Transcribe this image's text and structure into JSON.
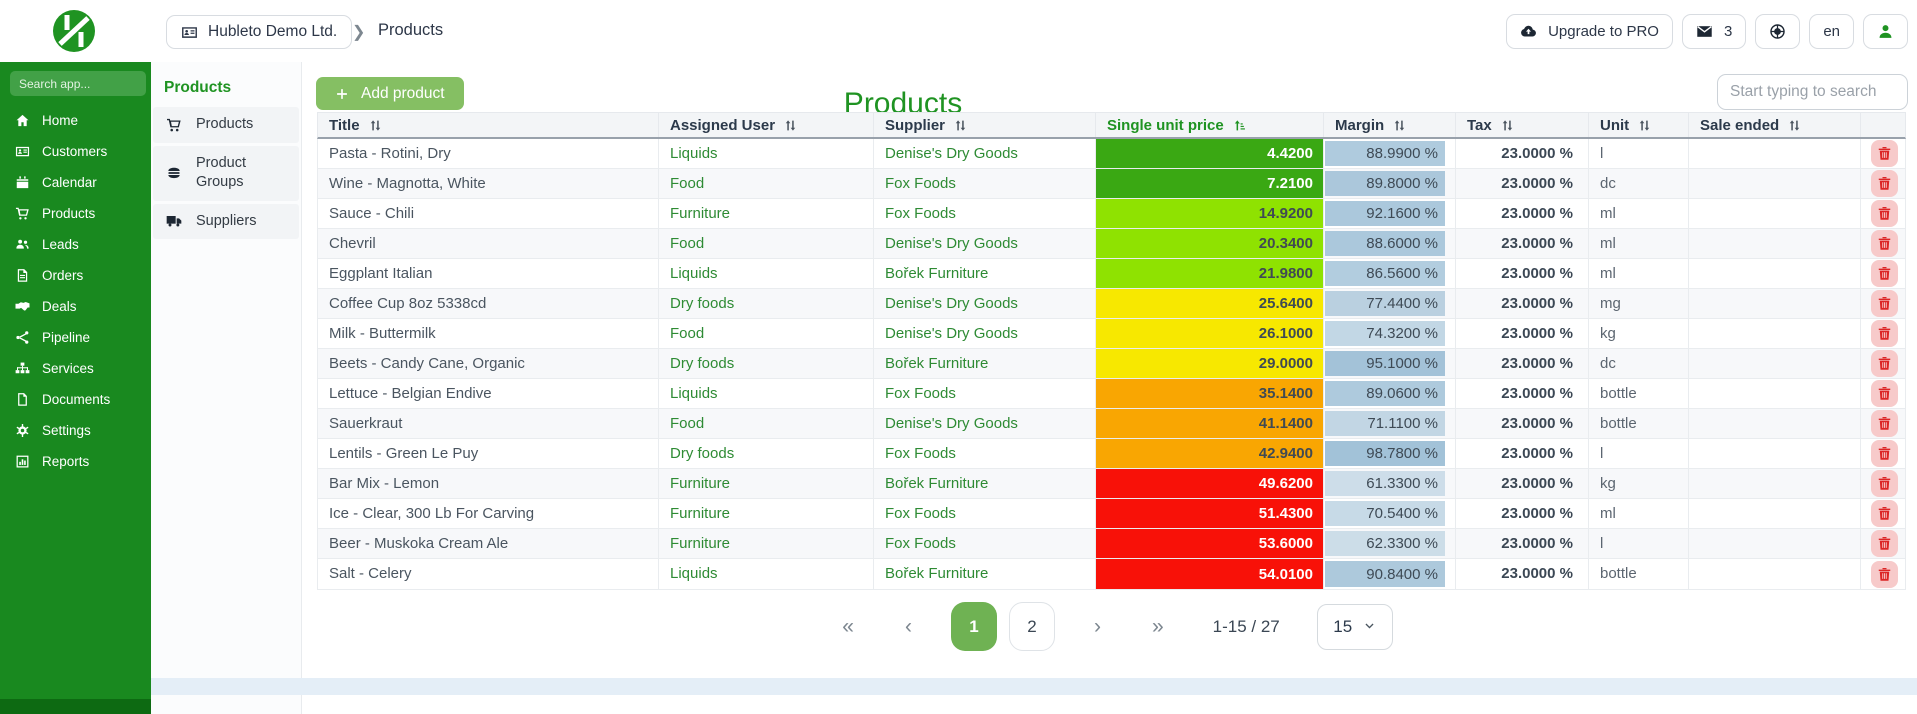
{
  "header": {
    "company": "Hubleto Demo Ltd.",
    "breadcrumb_current": "Products",
    "upgrade_label": "Upgrade to PRO",
    "notifications_count": "3",
    "language": "en"
  },
  "sidebar": {
    "search_placeholder": "Search app...",
    "items": [
      {
        "icon": "home-icon",
        "label": "Home"
      },
      {
        "icon": "id-card-icon",
        "label": "Customers"
      },
      {
        "icon": "calendar-icon",
        "label": "Calendar"
      },
      {
        "icon": "cart-icon",
        "label": "Products"
      },
      {
        "icon": "people-icon",
        "label": "Leads"
      },
      {
        "icon": "file-invoice-icon",
        "label": "Orders"
      },
      {
        "icon": "handshake-icon",
        "label": "Deals"
      },
      {
        "icon": "nodes-icon",
        "label": "Pipeline"
      },
      {
        "icon": "sitemap-icon",
        "label": "Services"
      },
      {
        "icon": "document-icon",
        "label": "Documents"
      },
      {
        "icon": "gear-icon",
        "label": "Settings"
      },
      {
        "icon": "chart-icon",
        "label": "Reports"
      }
    ]
  },
  "submenu": {
    "title": "Products",
    "items": [
      {
        "icon": "cart-icon",
        "label": "Products"
      },
      {
        "icon": "burger-icon",
        "label": "Product Groups"
      },
      {
        "icon": "truck-icon",
        "label": "Suppliers"
      }
    ]
  },
  "main": {
    "add_button_label": "Add product",
    "page_title": "Products",
    "search_placeholder": "Start typing to search"
  },
  "table": {
    "columns": [
      {
        "label": "Title"
      },
      {
        "label": "Assigned User"
      },
      {
        "label": "Supplier"
      },
      {
        "label": "Single unit price",
        "sorted": "asc"
      },
      {
        "label": "Margin"
      },
      {
        "label": "Tax"
      },
      {
        "label": "Unit"
      },
      {
        "label": "Sale ended"
      },
      {
        "label": ""
      }
    ],
    "rows": [
      {
        "title": "Pasta - Rotini, Dry",
        "assigned_user": "Liquids",
        "supplier": "Denise's Dry Goods",
        "price": "4.4200",
        "price_color": "#3aa813",
        "price_text": "#ffffff",
        "margin": "88.9900 %",
        "tax": "23.0000 %",
        "unit": "l",
        "sale_ended": ""
      },
      {
        "title": "Wine - Magnotta, White",
        "assigned_user": "Food",
        "supplier": "Fox Foods",
        "price": "7.2100",
        "price_color": "#3aa813",
        "price_text": "#ffffff",
        "margin": "89.8000 %",
        "tax": "23.0000 %",
        "unit": "dc",
        "sale_ended": ""
      },
      {
        "title": "Sauce - Chili",
        "assigned_user": "Furniture",
        "supplier": "Fox Foods",
        "price": "14.9200",
        "price_color": "#8fe201",
        "price_text": "#3f4a54",
        "margin": "92.1600 %",
        "tax": "23.0000 %",
        "unit": "ml",
        "sale_ended": ""
      },
      {
        "title": "Chevril",
        "assigned_user": "Food",
        "supplier": "Denise's Dry Goods",
        "price": "20.3400",
        "price_color": "#8fe201",
        "price_text": "#3f4a54",
        "margin": "88.6000 %",
        "tax": "23.0000 %",
        "unit": "ml",
        "sale_ended": ""
      },
      {
        "title": "Eggplant Italian",
        "assigned_user": "Liquids",
        "supplier": "Bořek Furniture",
        "price": "21.9800",
        "price_color": "#8fe201",
        "price_text": "#3f4a54",
        "margin": "86.5600 %",
        "tax": "23.0000 %",
        "unit": "ml",
        "sale_ended": ""
      },
      {
        "title": "Coffee Cup 8oz 5338cd",
        "assigned_user": "Dry foods",
        "supplier": "Denise's Dry Goods",
        "price": "25.6400",
        "price_color": "#f7e800",
        "price_text": "#3f4a54",
        "margin": "77.4400 %",
        "tax": "23.0000 %",
        "unit": "mg",
        "sale_ended": ""
      },
      {
        "title": "Milk - Buttermilk",
        "assigned_user": "Food",
        "supplier": "Denise's Dry Goods",
        "price": "26.1000",
        "price_color": "#f7e800",
        "price_text": "#3f4a54",
        "margin": "74.3200 %",
        "tax": "23.0000 %",
        "unit": "kg",
        "sale_ended": ""
      },
      {
        "title": "Beets - Candy Cane, Organic",
        "assigned_user": "Dry foods",
        "supplier": "Bořek Furniture",
        "price": "29.0000",
        "price_color": "#f7e800",
        "price_text": "#3f4a54",
        "margin": "95.1000 %",
        "tax": "23.0000 %",
        "unit": "dc",
        "sale_ended": ""
      },
      {
        "title": "Lettuce - Belgian Endive",
        "assigned_user": "Liquids",
        "supplier": "Fox Foods",
        "price": "35.1400",
        "price_color": "#f9a602",
        "price_text": "#3f4a54",
        "margin": "89.0600 %",
        "tax": "23.0000 %",
        "unit": "bottle",
        "sale_ended": ""
      },
      {
        "title": "Sauerkraut",
        "assigned_user": "Food",
        "supplier": "Denise's Dry Goods",
        "price": "41.1400",
        "price_color": "#f9a602",
        "price_text": "#3f4a54",
        "margin": "71.1100 %",
        "tax": "23.0000 %",
        "unit": "bottle",
        "sale_ended": ""
      },
      {
        "title": "Lentils - Green Le Puy",
        "assigned_user": "Dry foods",
        "supplier": "Fox Foods",
        "price": "42.9400",
        "price_color": "#f9a602",
        "price_text": "#3f4a54",
        "margin": "98.7800 %",
        "tax": "23.0000 %",
        "unit": "l",
        "sale_ended": ""
      },
      {
        "title": "Bar Mix - Lemon",
        "assigned_user": "Furniture",
        "supplier": "Bořek Furniture",
        "price": "49.6200",
        "price_color": "#f81108",
        "price_text": "#ffffff",
        "margin": "61.3300 %",
        "tax": "23.0000 %",
        "unit": "kg",
        "sale_ended": ""
      },
      {
        "title": "Ice - Clear, 300 Lb For Carving",
        "assigned_user": "Furniture",
        "supplier": "Fox Foods",
        "price": "51.4300",
        "price_color": "#f81108",
        "price_text": "#ffffff",
        "margin": "70.5400 %",
        "tax": "23.0000 %",
        "unit": "ml",
        "sale_ended": ""
      },
      {
        "title": "Beer - Muskoka Cream Ale",
        "assigned_user": "Furniture",
        "supplier": "Fox Foods",
        "price": "53.6000",
        "price_color": "#f81108",
        "price_text": "#ffffff",
        "margin": "62.3300 %",
        "tax": "23.0000 %",
        "unit": "l",
        "sale_ended": ""
      },
      {
        "title": "Salt - Celery",
        "assigned_user": "Liquids",
        "supplier": "Bořek Furniture",
        "price": "54.0100",
        "price_color": "#f81108",
        "price_text": "#ffffff",
        "margin": "90.8400 %",
        "tax": "23.0000 %",
        "unit": "bottle",
        "sale_ended": ""
      }
    ]
  },
  "pagination": {
    "first": "«",
    "prev": "‹",
    "pages": [
      {
        "label": "1",
        "current": true
      },
      {
        "label": "2",
        "current": false
      }
    ],
    "next": "›",
    "last": "»",
    "range": "1-15 / 27",
    "page_size": "15"
  },
  "colors": {
    "sidebar_green": "#19891f",
    "accent_green": "#1f9322",
    "button_green": "#85bf63",
    "margin_blue_base": "#6ea0c2",
    "delete_red": "#dc2626"
  }
}
